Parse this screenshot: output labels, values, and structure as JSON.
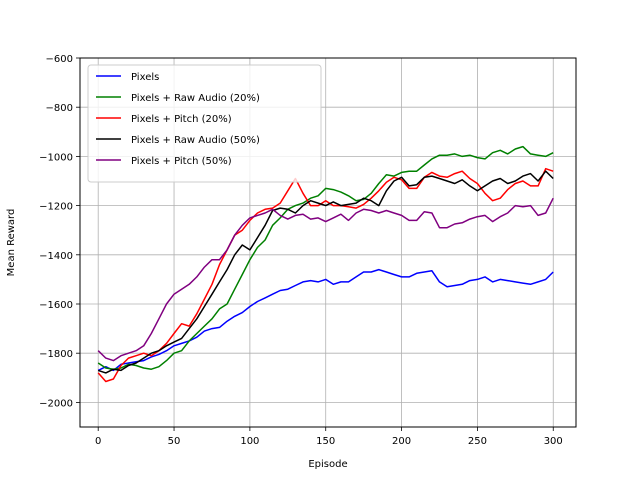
{
  "chart_data": {
    "type": "line",
    "title": "",
    "xlabel": "Episode",
    "ylabel": "Mean Reward",
    "xlim": [
      -12,
      315
    ],
    "ylim": [
      -2100,
      -600
    ],
    "xticks": [
      0,
      50,
      100,
      150,
      200,
      250,
      300
    ],
    "yticks": [
      -2000,
      -1800,
      -1600,
      -1400,
      -1200,
      -1000,
      -800,
      -600
    ],
    "xtick_labels": [
      "0",
      "50",
      "100",
      "150",
      "200",
      "250",
      "300"
    ],
    "ytick_labels": [
      "−2000",
      "−1800",
      "−1600",
      "−1400",
      "−1200",
      "−1000",
      "−800",
      "−600"
    ],
    "grid": true,
    "legend_position": "top-left",
    "x": [
      0,
      5,
      10,
      15,
      20,
      25,
      30,
      35,
      40,
      45,
      50,
      55,
      60,
      65,
      70,
      75,
      80,
      85,
      90,
      95,
      100,
      105,
      110,
      115,
      120,
      125,
      130,
      135,
      140,
      145,
      150,
      155,
      160,
      165,
      170,
      175,
      180,
      185,
      190,
      195,
      200,
      205,
      210,
      215,
      220,
      225,
      230,
      235,
      240,
      245,
      250,
      255,
      260,
      265,
      270,
      275,
      280,
      285,
      290,
      295,
      300
    ],
    "series": [
      {
        "name": "Pixels",
        "color": "#0000ff",
        "values": [
          -1870,
          -1855,
          -1870,
          -1845,
          -1840,
          -1835,
          -1830,
          -1815,
          -1805,
          -1790,
          -1770,
          -1760,
          -1750,
          -1735,
          -1710,
          -1700,
          -1695,
          -1670,
          -1650,
          -1635,
          -1610,
          -1590,
          -1575,
          -1560,
          -1545,
          -1540,
          -1525,
          -1510,
          -1505,
          -1510,
          -1500,
          -1520,
          -1510,
          -1510,
          -1490,
          -1470,
          -1470,
          -1460,
          -1470,
          -1480,
          -1490,
          -1490,
          -1475,
          -1470,
          -1465,
          -1510,
          -1530,
          -1525,
          -1520,
          -1505,
          -1500,
          -1490,
          -1510,
          -1500,
          -1505,
          -1510,
          -1515,
          -1520,
          -1510,
          -1500,
          -1470
        ]
      },
      {
        "name": "Pixels + Raw Audio (20%)",
        "color": "#008000",
        "values": [
          -1840,
          -1860,
          -1865,
          -1860,
          -1845,
          -1850,
          -1860,
          -1865,
          -1855,
          -1830,
          -1800,
          -1790,
          -1750,
          -1720,
          -1690,
          -1660,
          -1620,
          -1600,
          -1540,
          -1480,
          -1420,
          -1370,
          -1340,
          -1280,
          -1250,
          -1215,
          -1200,
          -1190,
          -1170,
          -1160,
          -1130,
          -1135,
          -1145,
          -1160,
          -1180,
          -1175,
          -1150,
          -1110,
          -1075,
          -1080,
          -1065,
          -1060,
          -1060,
          -1035,
          -1010,
          -995,
          -995,
          -990,
          -1000,
          -995,
          -1005,
          -1010,
          -985,
          -975,
          -990,
          -970,
          -960,
          -990,
          -995,
          -1000,
          -985
        ]
      },
      {
        "name": "Pixels + Pitch (20%)",
        "color": "#ff0000",
        "values": [
          -1880,
          -1915,
          -1905,
          -1850,
          -1820,
          -1810,
          -1800,
          -1810,
          -1790,
          -1760,
          -1720,
          -1680,
          -1690,
          -1640,
          -1580,
          -1520,
          -1440,
          -1380,
          -1320,
          -1300,
          -1260,
          -1230,
          -1215,
          -1210,
          -1190,
          -1140,
          -1090,
          -1150,
          -1200,
          -1200,
          -1180,
          -1200,
          -1200,
          -1205,
          -1210,
          -1195,
          -1170,
          -1140,
          -1105,
          -1085,
          -1095,
          -1130,
          -1130,
          -1085,
          -1065,
          -1080,
          -1085,
          -1070,
          -1060,
          -1090,
          -1110,
          -1150,
          -1180,
          -1170,
          -1135,
          -1110,
          -1100,
          -1120,
          -1120,
          -1050,
          -1060
        ]
      },
      {
        "name": "Pixels + Raw Audio (50%)",
        "color": "#000000",
        "values": [
          -1870,
          -1880,
          -1865,
          -1870,
          -1850,
          -1840,
          -1820,
          -1800,
          -1790,
          -1770,
          -1755,
          -1740,
          -1700,
          -1660,
          -1610,
          -1560,
          -1510,
          -1460,
          -1400,
          -1360,
          -1380,
          -1330,
          -1280,
          -1220,
          -1210,
          -1215,
          -1230,
          -1200,
          -1180,
          -1190,
          -1200,
          -1185,
          -1200,
          -1195,
          -1190,
          -1170,
          -1180,
          -1200,
          -1140,
          -1100,
          -1085,
          -1120,
          -1115,
          -1085,
          -1080,
          -1090,
          -1100,
          -1110,
          -1095,
          -1120,
          -1140,
          -1120,
          -1100,
          -1090,
          -1110,
          -1100,
          -1080,
          -1070,
          -1100,
          -1060,
          -1090
        ]
      },
      {
        "name": "Pixels + Pitch (50%)",
        "color": "#800080",
        "values": [
          -1790,
          -1820,
          -1830,
          -1810,
          -1800,
          -1790,
          -1770,
          -1720,
          -1660,
          -1600,
          -1560,
          -1540,
          -1520,
          -1490,
          -1450,
          -1420,
          -1420,
          -1380,
          -1320,
          -1280,
          -1250,
          -1240,
          -1230,
          -1215,
          -1240,
          -1255,
          -1240,
          -1235,
          -1255,
          -1250,
          -1265,
          -1250,
          -1235,
          -1260,
          -1230,
          -1215,
          -1220,
          -1230,
          -1220,
          -1230,
          -1240,
          -1260,
          -1260,
          -1225,
          -1230,
          -1290,
          -1290,
          -1275,
          -1270,
          -1255,
          -1245,
          -1240,
          -1265,
          -1245,
          -1230,
          -1200,
          -1205,
          -1200,
          -1240,
          -1230,
          -1170
        ]
      }
    ]
  }
}
